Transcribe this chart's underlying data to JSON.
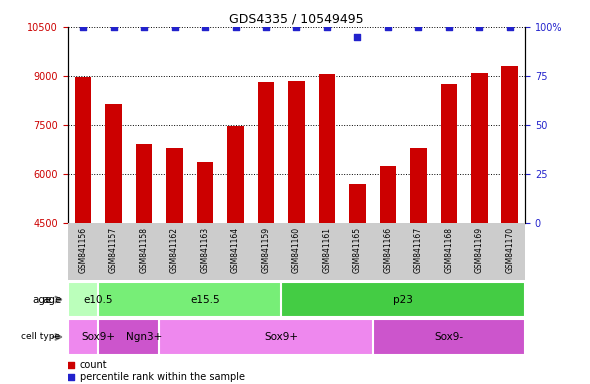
{
  "title": "GDS4335 / 10549495",
  "samples": [
    "GSM841156",
    "GSM841157",
    "GSM841158",
    "GSM841162",
    "GSM841163",
    "GSM841164",
    "GSM841159",
    "GSM841160",
    "GSM841161",
    "GSM841165",
    "GSM841166",
    "GSM841167",
    "GSM841168",
    "GSM841169",
    "GSM841170"
  ],
  "counts": [
    8950,
    8150,
    6900,
    6800,
    6350,
    7450,
    8800,
    8850,
    9050,
    5700,
    6250,
    6800,
    8750,
    9100,
    9300
  ],
  "percentile": [
    100,
    100,
    100,
    100,
    100,
    100,
    100,
    100,
    100,
    95,
    100,
    100,
    100,
    100,
    100
  ],
  "ylim_left": [
    4500,
    10500
  ],
  "ylim_right": [
    0,
    100
  ],
  "yticks_left": [
    4500,
    6000,
    7500,
    9000,
    10500
  ],
  "yticks_right": [
    0,
    25,
    50,
    75,
    100
  ],
  "bar_color": "#cc0000",
  "scatter_color": "#2222cc",
  "age_groups": [
    {
      "label": "e10.5",
      "start": 0,
      "end": 1,
      "color": "#bbffbb"
    },
    {
      "label": "e15.5",
      "start": 1,
      "end": 7,
      "color": "#77ee77"
    },
    {
      "label": "p23",
      "start": 7,
      "end": 14,
      "color": "#44cc44"
    }
  ],
  "cell_groups": [
    {
      "label": "Sox9+",
      "start": 0,
      "end": 1,
      "color": "#ee88ee"
    },
    {
      "label": "Ngn3+",
      "start": 1,
      "end": 3,
      "color": "#cc55cc"
    },
    {
      "label": "Sox9+",
      "start": 3,
      "end": 10,
      "color": "#ee88ee"
    },
    {
      "label": "Sox9-",
      "start": 10,
      "end": 14,
      "color": "#cc55cc"
    }
  ],
  "xlabel_bg": "#cccccc",
  "title_fontsize": 9,
  "bar_width": 0.55
}
